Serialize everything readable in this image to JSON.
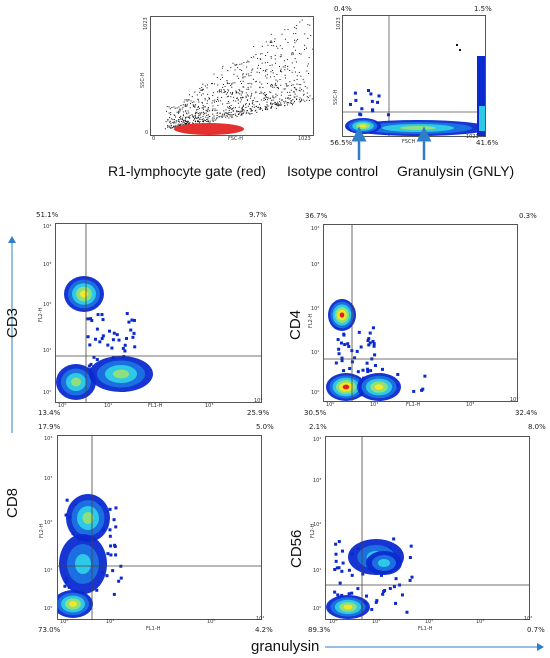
{
  "top": {
    "scatter": {
      "y_axis_label": "SSC-H",
      "x_axis_label": "FSC-H",
      "y_tick_max": "1023",
      "x_tick_max": "1023",
      "x_tick_min": "0",
      "y_tick_min": "0",
      "gate_label": "R1",
      "caption": "R1-lymphocyte gate (red)"
    },
    "gnly_plot": {
      "y_axis_label": "SSC-H",
      "x_axis_label": "FSCH",
      "y_tick_max": "1023",
      "x_tick_max": "1023",
      "pct_tl": "0.4%",
      "pct_tr": "1.5%",
      "pct_bl": "56.5%",
      "pct_br": "41.6%"
    },
    "caption_isotype": "Isotype control",
    "caption_gnly": "Granulysin (GNLY)"
  },
  "side_label_cd3": "CD3",
  "side_label_cd8": "CD8",
  "bottom_label": "granulysin",
  "panels": [
    {
      "id": "cd3",
      "label": "",
      "pct_tl": "51.1%",
      "pct_tr": "9.7%",
      "pct_bl": "13.4%",
      "pct_br": "25.9%",
      "x_axis": "FL1-H",
      "y_axis": "FL2-H"
    },
    {
      "id": "cd4",
      "label": "CD4",
      "pct_tl": "36.7%",
      "pct_tr": "0.3%",
      "pct_bl": "30.5%",
      "pct_br": "32.4%",
      "x_axis": "FL1-H",
      "y_axis": "FL2-H"
    },
    {
      "id": "cd8",
      "label": "",
      "pct_tl": "17.9%",
      "pct_tr": "5.0%",
      "pct_bl": "73.0%",
      "pct_br": "4.2%",
      "x_axis": "FL1-H",
      "y_axis": "FL2-H"
    },
    {
      "id": "cd56",
      "label": "CD56",
      "pct_tl": "2.1%",
      "pct_tr": "8.0%",
      "pct_bl": "89.3%",
      "pct_br": "0.7%",
      "x_axis": "FL1-H",
      "y_axis": "FL2-H"
    }
  ],
  "log_ticks": {
    "t0": "10⁰",
    "t1": "10¹",
    "t2": "10²",
    "t3": "10³",
    "t4": "10⁴"
  },
  "colors": {
    "arrow": "#2f7fc8",
    "red_gate": "#e53030",
    "density_low": "#0a2ad0",
    "density_mid": "#2ec9e6",
    "density_high": "#f2e82a",
    "density_peak": "#e02020"
  }
}
